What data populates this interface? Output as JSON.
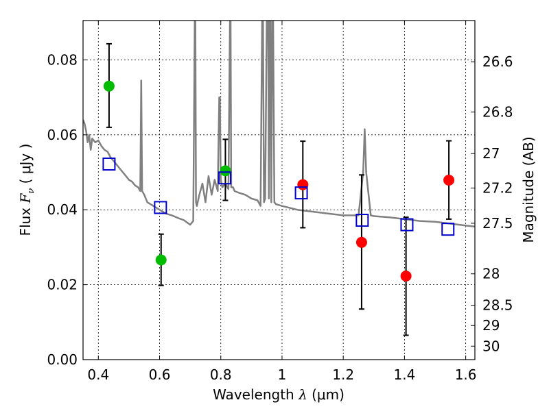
{
  "chart_data": {
    "type": "scatter",
    "xlabel_main": "Wavelength  ",
    "xlabel_sym": "λ",
    "xlabel_unit": "(μm)",
    "ylabel_main": "Flux  ",
    "ylabel_sym": "F",
    "ylabel_sub": "ν",
    "ylabel_unit": " ( μJy )",
    "y2label": "Magnitude (AB)",
    "xlim": [
      0.35,
      1.63
    ],
    "ylim": [
      0.0,
      0.0905
    ],
    "x_ticks": [
      0.4,
      0.6,
      0.8,
      1.0,
      1.2,
      1.4,
      1.6
    ],
    "x_tick_labels": [
      "0.4",
      "0.6",
      "0.8",
      "1",
      "1.2",
      "1.4",
      "1.6"
    ],
    "y_ticks": [
      0.0,
      0.02,
      0.04,
      0.06,
      0.08
    ],
    "y_tick_labels": [
      "0.00",
      "0.02",
      "0.04",
      "0.06",
      "0.08"
    ],
    "mag_ticks": [
      {
        "label": "26.6",
        "flux": 0.0795
      },
      {
        "label": "26.8",
        "flux": 0.0661
      },
      {
        "label": "27",
        "flux": 0.055
      },
      {
        "label": "27.2",
        "flux": 0.0458
      },
      {
        "label": "27.5",
        "flux": 0.0364
      },
      {
        "label": "28",
        "flux": 0.0229
      },
      {
        "label": "28.5",
        "flux": 0.0145
      },
      {
        "label": "29",
        "flux": 0.0091
      },
      {
        "label": "30",
        "flux": 0.0036
      }
    ],
    "series": [
      {
        "name": "green-photometry",
        "color": "#00bb00",
        "x": [
          0.435,
          0.605,
          0.815
        ],
        "y": [
          0.073,
          0.0266,
          0.0504
        ],
        "err_low": [
          0.062,
          0.0198,
          0.0425
        ],
        "err_high": [
          0.0843,
          0.0335,
          0.0588
        ]
      },
      {
        "name": "red-photometry",
        "color": "#ff0000",
        "x": [
          1.068,
          1.26,
          1.405,
          1.545
        ],
        "y": [
          0.0467,
          0.0313,
          0.0223,
          0.0479
        ],
        "err_low": [
          0.0352,
          0.0135,
          0.0065,
          0.0375
        ],
        "err_high": [
          0.0583,
          0.0493,
          0.038,
          0.0584
        ]
      },
      {
        "name": "model-photometry",
        "color": "#0000cc",
        "x": [
          0.435,
          0.603,
          0.813,
          1.063,
          1.262,
          1.408,
          1.542
        ],
        "y": [
          0.0522,
          0.0406,
          0.0485,
          0.0445,
          0.0372,
          0.036,
          0.0348
        ]
      }
    ],
    "sed": {
      "color": "#808080",
      "x": [
        0.35,
        0.355,
        0.36,
        0.365,
        0.37,
        0.375,
        0.38,
        0.39,
        0.4,
        0.41,
        0.42,
        0.43,
        0.44,
        0.45,
        0.46,
        0.47,
        0.48,
        0.49,
        0.5,
        0.51,
        0.52,
        0.53,
        0.537,
        0.54,
        0.543,
        0.55,
        0.56,
        0.58,
        0.6,
        0.62,
        0.64,
        0.66,
        0.68,
        0.7,
        0.71,
        0.715,
        0.717,
        0.719,
        0.722,
        0.73,
        0.74,
        0.75,
        0.76,
        0.77,
        0.775,
        0.78,
        0.79,
        0.795,
        0.797,
        0.8,
        0.805,
        0.815,
        0.825,
        0.83,
        0.832,
        0.834,
        0.84,
        0.845,
        0.86,
        0.88,
        0.9,
        0.92,
        0.93,
        0.935,
        0.938,
        0.941,
        0.945,
        0.95,
        0.955,
        0.957,
        0.96,
        0.962,
        0.965,
        0.968,
        0.971,
        0.975,
        0.98,
        1.0,
        1.05,
        1.1,
        1.15,
        1.2,
        1.25,
        1.265,
        1.27,
        1.275,
        1.29,
        1.3,
        1.35,
        1.4,
        1.45,
        1.5,
        1.55,
        1.6,
        1.63
      ],
      "y": [
        0.064,
        0.063,
        0.061,
        0.058,
        0.06,
        0.056,
        0.059,
        0.058,
        0.0585,
        0.057,
        0.056,
        0.0555,
        0.054,
        0.053,
        0.052,
        0.051,
        0.05,
        0.049,
        0.048,
        0.0475,
        0.0465,
        0.046,
        0.045,
        0.0745,
        0.045,
        0.044,
        0.042,
        0.041,
        0.04,
        0.039,
        0.0385,
        0.0378,
        0.0372,
        0.036,
        0.037,
        0.0905,
        0.0905,
        0.042,
        0.041,
        0.044,
        0.047,
        0.042,
        0.049,
        0.044,
        0.046,
        0.048,
        0.045,
        0.07,
        0.07,
        0.048,
        0.046,
        0.047,
        0.0455,
        0.0905,
        0.0905,
        0.046,
        0.046,
        0.045,
        0.0445,
        0.044,
        0.043,
        0.0425,
        0.041,
        0.0905,
        0.0905,
        0.042,
        0.043,
        0.0905,
        0.0905,
        0.043,
        0.0905,
        0.0905,
        0.042,
        0.0905,
        0.0905,
        0.042,
        0.0415,
        0.041,
        0.04,
        0.0395,
        0.039,
        0.0385,
        0.0385,
        0.05,
        0.0615,
        0.05,
        0.0385,
        0.0383,
        0.038,
        0.0375,
        0.037,
        0.0368,
        0.0363,
        0.0358,
        0.0355
      ]
    }
  }
}
